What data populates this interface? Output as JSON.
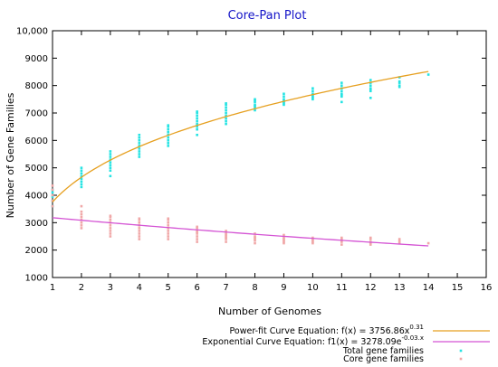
{
  "chart_data": {
    "type": "scatter",
    "title": "Core-Pan Plot",
    "xlabel": "Number of Genomes",
    "ylabel": "Number of Gene Families",
    "xlim": [
      1,
      16
    ],
    "ylim": [
      1000,
      10000
    ],
    "x_ticks": [
      1,
      2,
      3,
      4,
      5,
      6,
      7,
      8,
      9,
      10,
      11,
      12,
      13,
      14,
      15,
      16
    ],
    "y_ticks": [
      1000,
      2000,
      3000,
      4000,
      5000,
      6000,
      7000,
      8000,
      9000,
      10000
    ],
    "y_tick_labels": [
      "1000",
      "2000",
      "3000",
      "4000",
      "5000",
      "6000",
      "7000",
      "8000",
      "9000",
      "10,000"
    ],
    "grid": false,
    "legend_position": "bottom-right",
    "series": [
      {
        "name": "Total gene families",
        "kind": "points",
        "color": "#26e3e3",
        "x": [
          1,
          1,
          1,
          1,
          1,
          2,
          2,
          2,
          2,
          2,
          2,
          2,
          2,
          3,
          3,
          3,
          3,
          3,
          3,
          3,
          3,
          3,
          4,
          4,
          4,
          4,
          4,
          4,
          4,
          4,
          4,
          5,
          5,
          5,
          5,
          5,
          5,
          5,
          5,
          5,
          6,
          6,
          6,
          6,
          6,
          6,
          6,
          6,
          6,
          7,
          7,
          7,
          7,
          7,
          7,
          7,
          7,
          7,
          8,
          8,
          8,
          8,
          8,
          8,
          8,
          9,
          9,
          9,
          9,
          9,
          9,
          9,
          10,
          10,
          10,
          10,
          10,
          10,
          10,
          11,
          11,
          11,
          11,
          11,
          11,
          11,
          11,
          12,
          12,
          12,
          12,
          12,
          12,
          12,
          13,
          13,
          13,
          13,
          13,
          14
        ],
        "y": [
          3600,
          3800,
          3950,
          4100,
          4200,
          4300,
          4400,
          4500,
          4600,
          4700,
          4800,
          4900,
          5000,
          4700,
          4900,
          5000,
          5100,
          5200,
          5300,
          5400,
          5500,
          5600,
          5400,
          5500,
          5600,
          5700,
          5800,
          5900,
          6000,
          6100,
          6200,
          5800,
          5900,
          6000,
          6100,
          6200,
          6300,
          6400,
          6500,
          6550,
          6200,
          6400,
          6500,
          6600,
          6700,
          6800,
          6900,
          7000,
          7050,
          6600,
          6700,
          6800,
          6900,
          7000,
          7100,
          7200,
          7300,
          7350,
          7100,
          7200,
          7250,
          7300,
          7400,
          7450,
          7500,
          7300,
          7350,
          7400,
          7450,
          7500,
          7600,
          7700,
          7500,
          7550,
          7600,
          7650,
          7700,
          7800,
          7900,
          7400,
          7600,
          7650,
          7700,
          7800,
          7900,
          8000,
          8100,
          7550,
          7800,
          7850,
          7900,
          8000,
          8100,
          8200,
          7950,
          8000,
          8100,
          8150,
          8300,
          8400
        ]
      },
      {
        "name": "Core gene families",
        "kind": "points",
        "color": "#f0a8a8",
        "x": [
          1,
          1,
          1,
          1,
          1,
          2,
          2,
          2,
          2,
          2,
          2,
          2,
          2,
          3,
          3,
          3,
          3,
          3,
          3,
          3,
          3,
          3,
          4,
          4,
          4,
          4,
          4,
          4,
          4,
          4,
          4,
          5,
          5,
          5,
          5,
          5,
          5,
          5,
          5,
          5,
          6,
          6,
          6,
          6,
          6,
          6,
          6,
          6,
          7,
          7,
          7,
          7,
          7,
          7,
          7,
          8,
          8,
          8,
          8,
          8,
          8,
          9,
          9,
          9,
          9,
          9,
          9,
          10,
          10,
          10,
          10,
          10,
          11,
          11,
          11,
          11,
          11,
          12,
          12,
          12,
          12,
          12,
          13,
          13,
          13,
          13,
          14
        ],
        "y": [
          3600,
          3800,
          4000,
          4200,
          4350,
          2800,
          2900,
          3000,
          3100,
          3200,
          3300,
          3400,
          3600,
          2500,
          2600,
          2700,
          2800,
          2900,
          3000,
          3100,
          3200,
          3250,
          2400,
          2500,
          2600,
          2700,
          2800,
          2900,
          3000,
          3100,
          3150,
          2400,
          2500,
          2600,
          2700,
          2800,
          2900,
          3000,
          3100,
          3150,
          2300,
          2400,
          2500,
          2600,
          2650,
          2700,
          2800,
          2850,
          2300,
          2400,
          2450,
          2500,
          2550,
          2600,
          2700,
          2250,
          2350,
          2400,
          2450,
          2500,
          2600,
          2250,
          2300,
          2350,
          2400,
          2450,
          2550,
          2250,
          2300,
          2350,
          2400,
          2450,
          2200,
          2300,
          2350,
          2400,
          2450,
          2200,
          2250,
          2300,
          2400,
          2450,
          2250,
          2300,
          2350,
          2400,
          2250
        ]
      },
      {
        "name": "Power-fit Curve Equation: f(x) = 3756.86x^0.31",
        "kind": "curve",
        "color": "#e6a020",
        "model": "power",
        "a": 3756.86,
        "b": 0.31,
        "x_range": [
          1,
          14
        ]
      },
      {
        "name": "Exponential Curve Equation: f1(x) = 3278.09e^-0.03.x",
        "kind": "curve",
        "color": "#d454d4",
        "model": "exponential",
        "a": 3278.09,
        "b": -0.03,
        "x_range": [
          1,
          14
        ]
      }
    ],
    "legend": [
      {
        "pre": "Power-fit Curve Equation: f(x) = 3756.86x",
        "sup": "0.31",
        "post": "",
        "symbol": "line",
        "color": "#e6a020"
      },
      {
        "pre": "Exponential Curve Equation:   f1(x) = 3278.09e",
        "sup": "-0.03.x",
        "post": "",
        "symbol": "line",
        "color": "#d454d4"
      },
      {
        "pre": "Total gene families",
        "sup": "",
        "post": "",
        "symbol": "point",
        "color": "#26e3e3"
      },
      {
        "pre": "Core gene families",
        "sup": "",
        "post": "",
        "symbol": "point",
        "color": "#f0a8a8"
      }
    ]
  }
}
